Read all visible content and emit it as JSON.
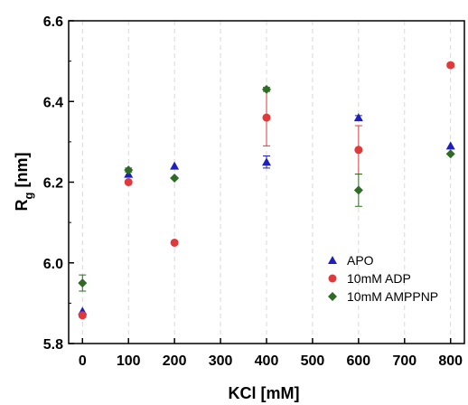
{
  "chart_data": {
    "type": "scatter",
    "title": "",
    "xlabel": "KCl [mM]",
    "ylabel": {
      "main": "R",
      "sub": "g",
      "unit": " [nm]"
    },
    "xlim": [
      -30,
      830
    ],
    "ylim": [
      5.8,
      6.6
    ],
    "xticks": [
      "0",
      "100",
      "200",
      "300",
      "400",
      "500",
      "600",
      "700",
      "800"
    ],
    "xtick_values": [
      0,
      100,
      200,
      300,
      400,
      500,
      600,
      700,
      800
    ],
    "yticks": [
      "5.8",
      "6.0",
      "6.2",
      "6.4",
      "6.6"
    ],
    "ytick_values": [
      5.8,
      6.0,
      6.2,
      6.4,
      6.6
    ],
    "grid": "vertical dashed",
    "legend_position": "bottom-right",
    "series": [
      {
        "name": "APO",
        "marker": "triangle",
        "color": "#1f1fbf",
        "points": [
          {
            "x": 0,
            "y": 5.88,
            "err": 0.0
          },
          {
            "x": 100,
            "y": 6.22,
            "err": 0.0
          },
          {
            "x": 200,
            "y": 6.24,
            "err": 0.0
          },
          {
            "x": 400,
            "y": 6.25,
            "err": 0.015
          },
          {
            "x": 600,
            "y": 6.36,
            "err": 0.005
          },
          {
            "x": 800,
            "y": 6.29,
            "err": 0.0
          }
        ]
      },
      {
        "name": "10mM ADP",
        "marker": "circle",
        "color": "#e0383b",
        "points": [
          {
            "x": 0,
            "y": 5.87,
            "err": 0.005
          },
          {
            "x": 100,
            "y": 6.2,
            "err": 0.0
          },
          {
            "x": 200,
            "y": 6.05,
            "err": 0.0
          },
          {
            "x": 400,
            "y": 6.36,
            "err": 0.07
          },
          {
            "x": 600,
            "y": 6.28,
            "err": 0.06
          },
          {
            "x": 800,
            "y": 6.49,
            "err": 0.005
          }
        ]
      },
      {
        "name": "10mM AMPPNP",
        "marker": "diamond",
        "color": "#2e6b24",
        "points": [
          {
            "x": 0,
            "y": 5.95,
            "err": 0.02
          },
          {
            "x": 100,
            "y": 6.23,
            "err": 0.005
          },
          {
            "x": 200,
            "y": 6.21,
            "err": 0.0
          },
          {
            "x": 400,
            "y": 6.43,
            "err": 0.005
          },
          {
            "x": 600,
            "y": 6.18,
            "err": 0.04
          },
          {
            "x": 800,
            "y": 6.27,
            "err": 0.0
          }
        ]
      }
    ]
  }
}
